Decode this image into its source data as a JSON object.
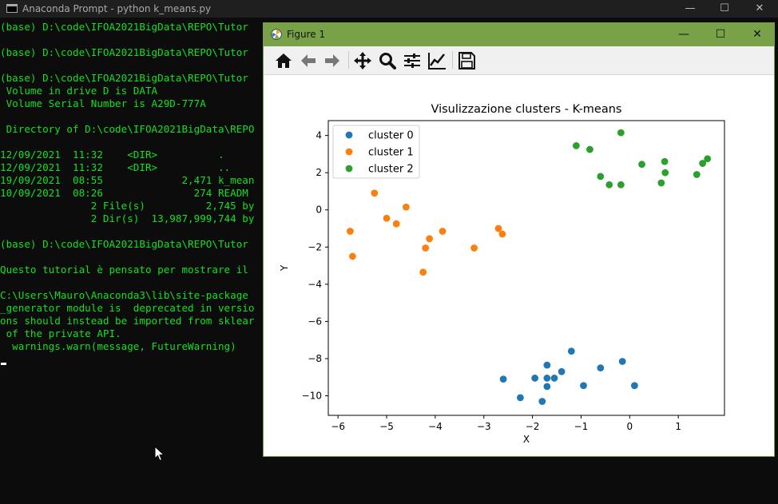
{
  "console": {
    "title": "Anaconda Prompt - python  k_means.py",
    "lines": [
      "(base) D:\\code\\IFOA2021BigData\\REPO\\Tutor",
      "",
      "(base) D:\\code\\IFOA2021BigData\\REPO\\Tutor",
      "",
      "(base) D:\\code\\IFOA2021BigData\\REPO\\Tutor",
      " Volume in drive D is DATA",
      " Volume Serial Number is A29D-777A",
      "",
      " Directory of D:\\code\\IFOA2021BigData\\REPO",
      "",
      "12/09/2021  11:32    <DIR>          .",
      "12/09/2021  11:32    <DIR>          ..",
      "19/09/2021  08:55             2,471 k_mean",
      "10/09/2021  08:26               274 READM",
      "               2 File(s)          2,745 by",
      "               2 Dir(s)  13,987,999,744 by",
      "",
      "(base) D:\\code\\IFOA2021BigData\\REPO\\Tutor",
      "",
      "Questo tutorial è pensato per mostrare il",
      "",
      "C:\\Users\\Mauro\\Anaconda3\\lib\\site-package",
      "_generator module is  deprecated in versio",
      "ons should instead be imported from sklear",
      " of the private API.",
      "  warnings.warn(message, FutureWarning)"
    ]
  },
  "figure": {
    "title": "Figure 1",
    "toolbar": [
      {
        "name": "home-icon",
        "label": "Home"
      },
      {
        "name": "back-icon",
        "label": "Back"
      },
      {
        "name": "forward-icon",
        "label": "Forward"
      },
      {
        "name": "pan-icon",
        "label": "Pan"
      },
      {
        "name": "zoom-icon",
        "label": "Zoom"
      },
      {
        "name": "configure-subplots-icon",
        "label": "Subplots"
      },
      {
        "name": "edit-axis-icon",
        "label": "Customize"
      },
      {
        "name": "save-icon",
        "label": "Save"
      }
    ]
  },
  "colors": {
    "console_text": "#13e01f",
    "figure_titlebar": "#79a248",
    "cluster_0": "#1f77b4",
    "cluster_1": "#ff7f0e",
    "cluster_2": "#2ca02c"
  },
  "chart_data": {
    "type": "scatter",
    "title": "Visulizzazione clusters - K-means",
    "xlabel": "X",
    "ylabel": "Y",
    "xlim": [
      -6.2,
      1.95
    ],
    "ylim": [
      -11.05,
      4.8
    ],
    "xticks": [
      -6,
      -5,
      -4,
      -3,
      -2,
      -1,
      0,
      1
    ],
    "yticks": [
      -10,
      -8,
      -6,
      -4,
      -2,
      0,
      2,
      4
    ],
    "legend_position": "top-left",
    "grid": false,
    "series": [
      {
        "name": "cluster 0",
        "color": "#1f77b4",
        "points": [
          [
            -2.6,
            -9.1
          ],
          [
            -2.25,
            -10.1
          ],
          [
            -1.95,
            -9.05
          ],
          [
            -1.8,
            -10.3
          ],
          [
            -1.7,
            -8.35
          ],
          [
            -1.7,
            -9.05
          ],
          [
            -1.7,
            -9.5
          ],
          [
            -1.55,
            -9.05
          ],
          [
            -1.4,
            -8.7
          ],
          [
            -1.2,
            -7.6
          ],
          [
            -0.95,
            -9.45
          ],
          [
            -0.6,
            -8.5
          ],
          [
            -0.15,
            -8.15
          ],
          [
            0.1,
            -9.45
          ]
        ]
      },
      {
        "name": "cluster 1",
        "color": "#ff7f0e",
        "points": [
          [
            -5.75,
            -1.15
          ],
          [
            -5.7,
            -2.5
          ],
          [
            -5.25,
            0.9
          ],
          [
            -5.0,
            -0.45
          ],
          [
            -4.8,
            -0.75
          ],
          [
            -4.6,
            0.15
          ],
          [
            -4.25,
            -3.35
          ],
          [
            -4.2,
            -2.05
          ],
          [
            -4.12,
            -1.55
          ],
          [
            -3.85,
            -1.15
          ],
          [
            -3.2,
            -2.05
          ],
          [
            -2.7,
            -1.0
          ],
          [
            -2.62,
            -1.3
          ]
        ]
      },
      {
        "name": "cluster 2",
        "color": "#2ca02c",
        "points": [
          [
            -1.1,
            3.45
          ],
          [
            -0.82,
            3.25
          ],
          [
            -0.6,
            1.8
          ],
          [
            -0.42,
            1.35
          ],
          [
            -0.18,
            4.15
          ],
          [
            -0.18,
            1.35
          ],
          [
            0.25,
            2.45
          ],
          [
            0.65,
            1.45
          ],
          [
            0.72,
            2.6
          ],
          [
            0.73,
            2.0
          ],
          [
            1.38,
            1.9
          ],
          [
            1.5,
            2.5
          ],
          [
            1.6,
            2.75
          ]
        ]
      }
    ]
  }
}
